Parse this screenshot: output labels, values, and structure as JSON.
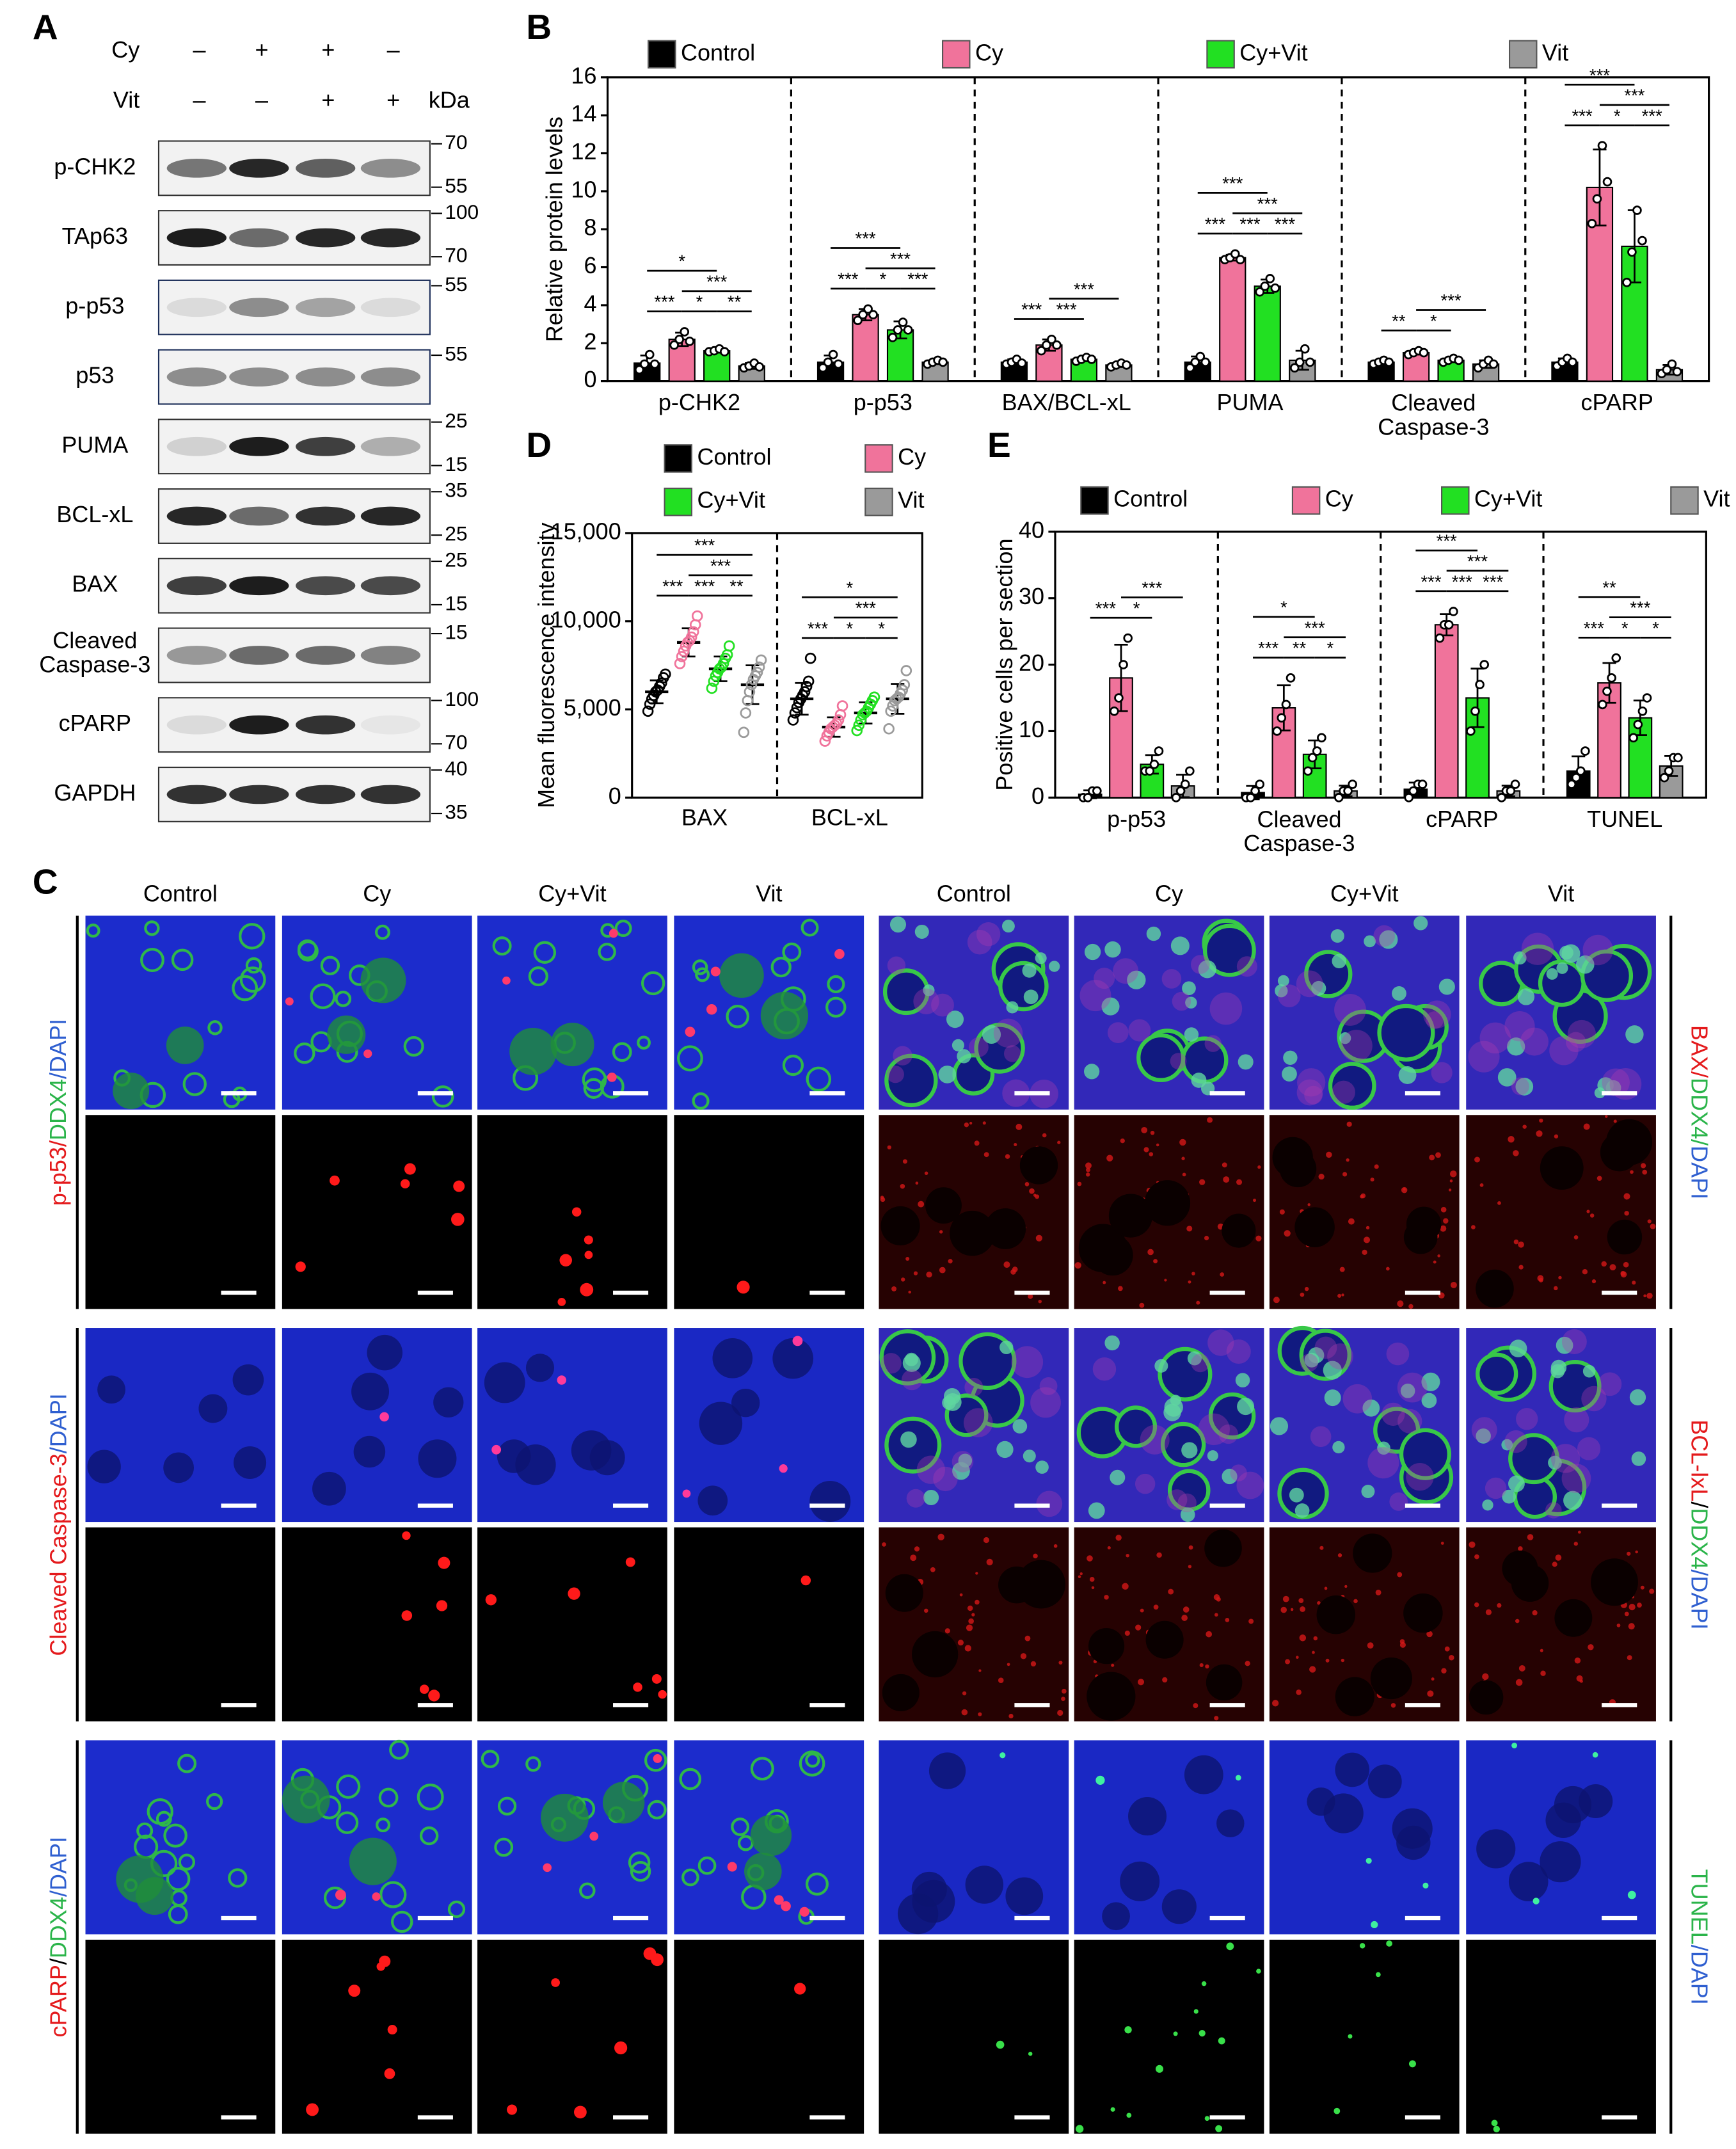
{
  "panels": {
    "a": "A",
    "b": "B",
    "c": "C",
    "d": "D",
    "e": "E"
  },
  "blot": {
    "treatments": [
      {
        "label": "Cy",
        "signs": [
          "–",
          "+",
          "+",
          "–"
        ]
      },
      {
        "label": "Vit",
        "signs": [
          "–",
          "–",
          "+",
          "+"
        ]
      }
    ],
    "unit": "kDa",
    "bands": [
      {
        "label": "p-CHK2",
        "markers": [
          70,
          55
        ]
      },
      {
        "label": "TAp63",
        "markers": [
          100,
          70
        ]
      },
      {
        "label": "p-p53",
        "markers": [
          55
        ]
      },
      {
        "label": "p53",
        "markers": [
          55
        ]
      },
      {
        "label": "PUMA",
        "markers": [
          25,
          15
        ]
      },
      {
        "label": "BCL-xL",
        "markers": [
          35,
          25
        ]
      },
      {
        "label": "BAX",
        "markers": [
          25,
          15
        ]
      },
      {
        "label": "Cleaved\nCaspase-3",
        "markers": [
          15
        ]
      },
      {
        "label": "cPARP",
        "markers": [
          100,
          70
        ]
      },
      {
        "label": "GAPDH",
        "markers": [
          40,
          35
        ]
      }
    ]
  },
  "chart_data": [
    {
      "type": "bar",
      "ylabel": "Relative protein levels",
      "categories": [
        "p-CHK2",
        "p-p53",
        "BAX/BCL-xL",
        "PUMA",
        "Cleaved\nCaspase-3",
        "cPARP"
      ],
      "ylim": [
        0,
        16
      ],
      "yticks": [
        0,
        2,
        4,
        6,
        8,
        10,
        12,
        14,
        16
      ],
      "series": [
        {
          "name": "Control",
          "color": "#000000",
          "values": [
            0.95,
            1.0,
            1.0,
            1.0,
            1.0,
            1.0
          ],
          "errors": [
            0.4,
            0.35,
            0.15,
            0.3,
            0.1,
            0.2
          ],
          "points": [
            [
              0.6,
              0.9,
              1.4,
              0.9
            ],
            [
              0.7,
              1.0,
              1.4,
              0.9
            ],
            [
              0.9,
              1.0,
              1.15,
              0.95
            ],
            [
              0.7,
              1.0,
              1.3,
              1.0
            ],
            [
              0.9,
              1.0,
              1.1,
              1.0
            ],
            [
              0.8,
              1.0,
              1.2,
              1.0
            ]
          ]
        },
        {
          "name": "Cy",
          "color": "#f0739b",
          "values": [
            2.2,
            3.5,
            1.9,
            6.5,
            1.5,
            10.2
          ],
          "errors": [
            0.35,
            0.3,
            0.3,
            0.15,
            0.1,
            2.0
          ],
          "points": [
            [
              1.9,
              2.2,
              2.6,
              2.1
            ],
            [
              3.2,
              3.5,
              3.8,
              3.5
            ],
            [
              1.6,
              1.9,
              2.2,
              1.9
            ],
            [
              6.4,
              6.5,
              6.7,
              6.4
            ],
            [
              1.4,
              1.5,
              1.6,
              1.5
            ],
            [
              8.3,
              9.6,
              12.4,
              10.5
            ]
          ]
        },
        {
          "name": "Cy+Vit",
          "color": "#22e022",
          "values": [
            1.6,
            2.7,
            1.15,
            5.0,
            1.1,
            7.1
          ],
          "errors": [
            0.1,
            0.45,
            0.1,
            0.35,
            0.1,
            1.9
          ],
          "points": [
            [
              1.55,
              1.6,
              1.7,
              1.55
            ],
            [
              2.3,
              2.7,
              3.1,
              2.7
            ],
            [
              1.05,
              1.15,
              1.25,
              1.15
            ],
            [
              4.7,
              5.0,
              5.4,
              4.9
            ],
            [
              1.0,
              1.1,
              1.2,
              1.1
            ],
            [
              5.2,
              6.8,
              9.0,
              7.4
            ]
          ]
        },
        {
          "name": "Vit",
          "color": "#9a9a9a",
          "values": [
            0.8,
            1.0,
            0.85,
            1.1,
            0.9,
            0.6
          ],
          "errors": [
            0.15,
            0.1,
            0.1,
            0.5,
            0.2,
            0.25
          ],
          "points": [
            [
              0.7,
              0.8,
              0.95,
              0.75
            ],
            [
              0.9,
              1.0,
              1.1,
              1.0
            ],
            [
              0.75,
              0.85,
              0.95,
              0.85
            ],
            [
              0.7,
              1.0,
              1.7,
              1.0
            ],
            [
              0.7,
              0.9,
              1.1,
              0.9
            ],
            [
              0.4,
              0.6,
              0.9,
              0.5
            ]
          ]
        }
      ],
      "significance": [
        [
          {
            "from": 1,
            "to": 2,
            "label": "*"
          },
          {
            "from": 2,
            "to": 3,
            "label": "**"
          },
          {
            "from": 0,
            "to": 1,
            "label": "***"
          },
          {
            "from": 1,
            "to": 3,
            "label": "***"
          },
          {
            "from": 0,
            "to": 2,
            "label": "*"
          }
        ],
        [
          {
            "from": 1,
            "to": 2,
            "label": "*"
          },
          {
            "from": 2,
            "to": 3,
            "label": "***"
          },
          {
            "from": 0,
            "to": 1,
            "label": "***"
          },
          {
            "from": 1,
            "to": 3,
            "label": "***"
          },
          {
            "from": 0,
            "to": 2,
            "label": "***"
          }
        ],
        [
          {
            "from": 1,
            "to": 2,
            "label": "***"
          },
          {
            "from": 0,
            "to": 1,
            "label": "***"
          },
          {
            "from": 1,
            "to": 3,
            "label": "***"
          }
        ],
        [
          {
            "from": 1,
            "to": 2,
            "label": "***"
          },
          {
            "from": 2,
            "to": 3,
            "label": "***"
          },
          {
            "from": 0,
            "to": 1,
            "label": "***"
          },
          {
            "from": 1,
            "to": 3,
            "label": "***"
          },
          {
            "from": 0,
            "to": 2,
            "label": "***"
          }
        ],
        [
          {
            "from": 1,
            "to": 2,
            "label": "*"
          },
          {
            "from": 0,
            "to": 1,
            "label": "**"
          },
          {
            "from": 1,
            "to": 3,
            "label": "***"
          }
        ],
        [
          {
            "from": 1,
            "to": 2,
            "label": "*"
          },
          {
            "from": 2,
            "to": 3,
            "label": "***"
          },
          {
            "from": 0,
            "to": 1,
            "label": "***"
          },
          {
            "from": 1,
            "to": 3,
            "label": "***"
          },
          {
            "from": 0,
            "to": 2,
            "label": "***"
          }
        ]
      ]
    },
    {
      "type": "strip",
      "ylabel": "Mean fluorescence intensity",
      "categories": [
        "BAX",
        "BCL-xL"
      ],
      "ylim": [
        0,
        15000
      ],
      "yticks": [
        0,
        {
          "value": 5000,
          "label": "5,000"
        },
        {
          "value": 10000,
          "label": "10,000"
        },
        {
          "value": 15000,
          "label": "15,000"
        }
      ],
      "series": [
        {
          "name": "Control",
          "color": "#000000",
          "values": [
            6000,
            5600
          ],
          "errors": [
            650,
            900
          ],
          "points": [
            [
              4900,
              5300,
              5600,
              5800,
              6000,
              6100,
              6300,
              6500,
              6800,
              7000
            ],
            [
              4400,
              4800,
              5100,
              5400,
              5600,
              5800,
              6000,
              6300,
              6600,
              7900
            ]
          ]
        },
        {
          "name": "Cy",
          "color": "#f0739b",
          "values": [
            8800,
            4000
          ],
          "errors": [
            800,
            550
          ],
          "points": [
            [
              7600,
              8000,
              8300,
              8600,
              8800,
              8900,
              9100,
              9400,
              9800,
              10300
            ],
            [
              3200,
              3500,
              3700,
              3900,
              4000,
              4100,
              4200,
              4400,
              4700,
              5200
            ]
          ]
        },
        {
          "name": "Cy+Vit",
          "color": "#22e022",
          "values": [
            7300,
            4800
          ],
          "errors": [
            700,
            600
          ],
          "points": [
            [
              6200,
              6600,
              6900,
              7100,
              7300,
              7400,
              7600,
              7900,
              8100,
              8600
            ],
            [
              3800,
              4100,
              4400,
              4700,
              4800,
              4900,
              5100,
              5300,
              5500,
              5700
            ]
          ]
        },
        {
          "name": "Vit",
          "color": "#9a9a9a",
          "values": [
            6400,
            5600
          ],
          "errors": [
            1100,
            850
          ],
          "points": [
            [
              3700,
              4800,
              5500,
              6000,
              6400,
              6700,
              6900,
              7100,
              7400,
              7800
            ],
            [
              3900,
              4900,
              5200,
              5500,
              5600,
              5700,
              5900,
              6100,
              6400,
              7200
            ]
          ]
        }
      ],
      "significance": [
        [
          {
            "from": 1,
            "to": 2,
            "label": "***"
          },
          {
            "from": 2,
            "to": 3,
            "label": "**"
          },
          {
            "from": 0,
            "to": 1,
            "label": "***"
          },
          {
            "from": 1,
            "to": 3,
            "label": "***"
          },
          {
            "from": 0,
            "to": 3,
            "label": "***"
          }
        ],
        [
          {
            "from": 1,
            "to": 2,
            "label": "*"
          },
          {
            "from": 2,
            "to": 3,
            "label": "*"
          },
          {
            "from": 0,
            "to": 1,
            "label": "***"
          },
          {
            "from": 1,
            "to": 3,
            "label": "***"
          },
          {
            "from": 0,
            "to": 3,
            "label": "*"
          }
        ]
      ]
    },
    {
      "type": "bar",
      "ylabel": "Positive cells per section",
      "categories": [
        "p-p53",
        "Cleaved\nCaspase-3",
        "cPARP",
        "TUNEL"
      ],
      "ylim": [
        0,
        40
      ],
      "yticks": [
        0,
        10,
        20,
        30,
        40
      ],
      "series": [
        {
          "name": "Control",
          "color": "#000000",
          "values": [
            0.5,
            0.75,
            1.25,
            4
          ],
          "errors": [
            0.6,
            1.0,
            1.0,
            2.2
          ],
          "points": [
            [
              0,
              0,
              1,
              1
            ],
            [
              0,
              0,
              1,
              2
            ],
            [
              0,
              1,
              2,
              2
            ],
            [
              2,
              3,
              4,
              7
            ]
          ]
        },
        {
          "name": "Cy",
          "color": "#f0739b",
          "values": [
            18,
            13.5,
            26,
            17.25
          ],
          "errors": [
            5.0,
            3.4,
            1.6,
            3.0
          ],
          "points": [
            [
              13,
              15,
              20,
              24
            ],
            [
              10,
              12,
              14,
              18
            ],
            [
              24,
              26,
              26,
              28
            ],
            [
              14,
              16,
              18,
              21
            ]
          ]
        },
        {
          "name": "Cy+Vit",
          "color": "#22e022",
          "values": [
            5,
            6.5,
            15,
            12
          ],
          "errors": [
            1.4,
            2.1,
            4.4,
            2.6
          ],
          "points": [
            [
              4,
              4,
              5,
              7
            ],
            [
              4,
              6,
              7,
              9
            ],
            [
              10,
              13,
              17,
              20
            ],
            [
              9,
              11,
              13,
              15
            ]
          ]
        },
        {
          "name": "Vit",
          "color": "#9a9a9a",
          "values": [
            1.75,
            1,
            1,
            4.75
          ],
          "errors": [
            1.7,
            0.8,
            0.8,
            1.5
          ],
          "points": [
            [
              0,
              1,
              2,
              4
            ],
            [
              0,
              1,
              1,
              2
            ],
            [
              0,
              1,
              1,
              2
            ],
            [
              3,
              4,
              6,
              6
            ]
          ]
        }
      ],
      "significance": [
        [
          {
            "from": 1,
            "to": 2,
            "label": "*"
          },
          {
            "from": 0,
            "to": 1,
            "label": "***"
          },
          {
            "from": 1,
            "to": 3,
            "label": "***"
          }
        ],
        [
          {
            "from": 1,
            "to": 2,
            "label": "**"
          },
          {
            "from": 2,
            "to": 3,
            "label": "*"
          },
          {
            "from": 0,
            "to": 1,
            "label": "***"
          },
          {
            "from": 1,
            "to": 3,
            "label": "***"
          },
          {
            "from": 0,
            "to": 2,
            "label": "*"
          }
        ],
        [
          {
            "from": 1,
            "to": 2,
            "label": "***"
          },
          {
            "from": 2,
            "to": 3,
            "label": "***"
          },
          {
            "from": 0,
            "to": 1,
            "label": "***"
          },
          {
            "from": 1,
            "to": 3,
            "label": "***"
          },
          {
            "from": 0,
            "to": 2,
            "label": "***"
          }
        ],
        [
          {
            "from": 1,
            "to": 2,
            "label": "*"
          },
          {
            "from": 2,
            "to": 3,
            "label": "*"
          },
          {
            "from": 0,
            "to": 1,
            "label": "***"
          },
          {
            "from": 1,
            "to": 3,
            "label": "***"
          },
          {
            "from": 0,
            "to": 2,
            "label": "**"
          }
        ]
      ]
    }
  ],
  "micrographs": {
    "columns": [
      "Control",
      "Cy",
      "Cy+Vit",
      "Vit",
      "Control",
      "Cy",
      "Cy+Vit",
      "Vit"
    ],
    "stains": [
      {
        "left": [
          {
            "text": "p-p53/",
            "color": "#e41a1c"
          },
          {
            "text": "DDX4",
            "color": "#2bb44a"
          },
          {
            "text": "/DAPI",
            "color": "#2f5fd0"
          }
        ],
        "right": [
          {
            "text": "BAX/",
            "color": "#e41a1c"
          },
          {
            "text": "DDX4/",
            "color": "#2bb44a"
          },
          {
            "text": "DAPI",
            "color": "#2f5fd0"
          }
        ]
      },
      {
        "left": [
          {
            "text": "Cleaved Caspase-3",
            "color": "#e41a1c"
          },
          {
            "text": "/DAPI",
            "color": "#2f5fd0"
          }
        ],
        "right": [
          {
            "text": "BCL-lxL",
            "color": "#e41a1c"
          },
          {
            "text": "/",
            "color": "#000000"
          },
          {
            "text": "DDX4",
            "color": "#2bb44a"
          },
          {
            "text": "/DAPI",
            "color": "#2f5fd0"
          }
        ]
      },
      {
        "left": [
          {
            "text": "cPARP",
            "color": "#e41a1c"
          },
          {
            "text": "/",
            "color": "#000000"
          },
          {
            "text": "DDX4",
            "color": "#2bb44a"
          },
          {
            "text": "/DAPI",
            "color": "#2f5fd0"
          }
        ],
        "right": [
          {
            "text": "TUNEL",
            "color": "#2bb44a"
          },
          {
            "text": "/DAPI",
            "color": "#2f5fd0"
          }
        ]
      }
    ]
  }
}
